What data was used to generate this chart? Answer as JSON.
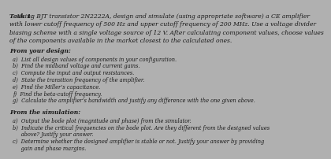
{
  "background_color": "#b0b0b0",
  "title_bold": "Task 1:",
  "title_text": " Using BJT transistor 2N2222A, design and simulate (using appropriate software) a CE amplifier",
  "line2": "with lower cutoff frequency of 500 Hz and upper cutoff frequency of 200 MHz. Use a voltage divider",
  "line3": "biasing scheme with a single voltage source of 12 V. After calculating component values, choose values",
  "line4": "of the components available in the market closest to the calculated ones.",
  "section1": "From your design:",
  "items_design": [
    "a)  List all design values of components in your configuration.",
    "b)  Find the midband voltage and current gains.",
    "c)  Compute the input and output resistances.",
    "d)  State the transition frequency of the amplifier.",
    "e)  Find the Miller’s capacitance.",
    "f)  Find the beta-cutoff frequency.",
    "g)  Calculate the amplifier’s bandwidth and justify any difference with the one given above."
  ],
  "section2": "From the simulation:",
  "items_sim": [
    "a)  Output the bode plot (magnitude and phase) from the simulator.",
    "b)  Indicate the critical frequencies on the bode plot. Are they different from the designed values",
    "     above? Justify your answer.",
    "c)  Determine whether the designed amplifier is stable or not. Justify your answer by providing",
    "     gain and phase margins."
  ],
  "font_size_title": 5.5,
  "font_size_body": 4.8,
  "text_color": "#1a1a1a"
}
